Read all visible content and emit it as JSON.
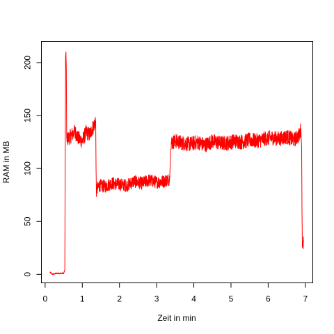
{
  "chart_data": {
    "type": "line",
    "title": "",
    "xlabel": "Zeit in min",
    "ylabel": "RAM in MB",
    "xlim": [
      -0.1,
      7.2
    ],
    "ylim": [
      -8,
      220
    ],
    "x_ticks": [
      0,
      1,
      2,
      3,
      4,
      5,
      6,
      7
    ],
    "y_ticks": [
      0,
      50,
      100,
      150,
      200
    ],
    "grid": false,
    "legend": "none",
    "series_color": "#ff0000",
    "series": [
      {
        "x": [
          0.13,
          0.2,
          0.3,
          0.4,
          0.5,
          0.53,
          0.55,
          0.56,
          0.57,
          0.58,
          0.59,
          0.6,
          0.61,
          0.7,
          0.8,
          0.9,
          1.0,
          1.1,
          1.2,
          1.3,
          1.36,
          1.37,
          1.38,
          1.45,
          1.6,
          1.8,
          2.0,
          2.2,
          2.4,
          2.6,
          2.8,
          3.0,
          3.2,
          3.35,
          3.37,
          3.38,
          3.39,
          3.5,
          3.7,
          3.9,
          4.1,
          4.3,
          4.5,
          4.7,
          4.9,
          5.1,
          5.3,
          5.5,
          5.7,
          5.9,
          6.1,
          6.3,
          6.5,
          6.7,
          6.85,
          6.88,
          6.9,
          6.91,
          6.92,
          6.93,
          6.95
        ],
        "values": [
          2,
          0,
          1,
          1,
          1,
          4,
          205,
          210,
          195,
          130,
          125,
          132,
          128,
          131,
          135,
          128,
          126,
          134,
          132,
          140,
          145,
          100,
          79,
          84,
          83,
          86,
          85,
          84,
          88,
          86,
          89,
          87,
          88,
          90,
          110,
          125,
          124,
          126,
          124,
          123,
          125,
          122,
          126,
          124,
          124,
          126,
          125,
          127,
          126,
          128,
          129,
          128,
          130,
          127,
          132,
          138,
          120,
          60,
          30,
          29,
          31
        ]
      }
    ]
  }
}
